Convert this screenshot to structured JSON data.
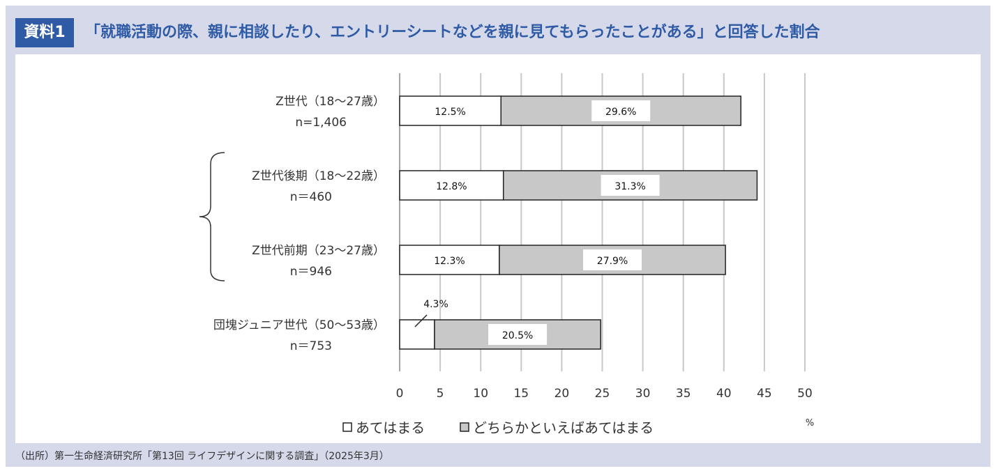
{
  "header": {
    "badge": "資料1",
    "title": "「就職活動の際、親に相談したり、エントリーシートなどを親に見てもらったことがある」と回答した割合"
  },
  "source": "（出所）第一生命経済研究所「第13回 ライフデザインに関する調査」（2025年3月）",
  "colors": {
    "series1": "#ffffff",
    "series2": "#c8c8c8",
    "accent": "#2f5ba6",
    "background": "#d6d9ea"
  },
  "chart_data": {
    "type": "bar",
    "orientation": "horizontal",
    "stacked": true,
    "categories": [
      {
        "label": "Z世代（18〜27歳）",
        "n": "n=1,406"
      },
      {
        "label": "Z世代後期（18〜22歳）",
        "n": "n＝460"
      },
      {
        "label": "Z世代前期（23〜27歳）",
        "n": "n＝946"
      },
      {
        "label": "団塊ジュニア世代（50〜53歳）",
        "n": "n＝753"
      }
    ],
    "series": [
      {
        "name": "あてはまる",
        "values": [
          12.5,
          12.8,
          12.3,
          4.3
        ],
        "labels": [
          "12.5%",
          "12.8%",
          "12.3%",
          "4.3%"
        ]
      },
      {
        "name": "どちらかといえばあてはまる",
        "values": [
          29.6,
          31.3,
          27.9,
          20.5
        ],
        "labels": [
          "29.6%",
          "31.3%",
          "27.9%",
          "20.5%"
        ]
      }
    ],
    "xlim": [
      0,
      50
    ],
    "xticks": [
      "0",
      "5",
      "10",
      "15",
      "20",
      "25",
      "30",
      "35",
      "40",
      "45",
      "50"
    ],
    "xunit": "%",
    "grid": true,
    "legend": "bottom",
    "bracket_groups": "Z世代後期 and Z世代前期"
  }
}
